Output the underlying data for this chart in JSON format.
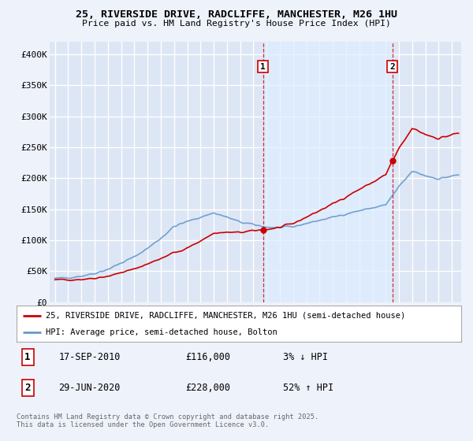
{
  "title": "25, RIVERSIDE DRIVE, RADCLIFFE, MANCHESTER, M26 1HU",
  "subtitle": "Price paid vs. HM Land Registry's House Price Index (HPI)",
  "background_color": "#eef2fb",
  "plot_bg_color": "#dde6f5",
  "plot_bg_highlight": "#ddeeff",
  "grid_color": "#ffffff",
  "ylim": [
    0,
    420000
  ],
  "yticks": [
    0,
    50000,
    100000,
    150000,
    200000,
    250000,
    300000,
    350000,
    400000
  ],
  "ytick_labels": [
    "£0",
    "£50K",
    "£100K",
    "£150K",
    "£200K",
    "£250K",
    "£300K",
    "£350K",
    "£400K"
  ],
  "legend_line1": "25, RIVERSIDE DRIVE, RADCLIFFE, MANCHESTER, M26 1HU (semi-detached house)",
  "legend_line2": "HPI: Average price, semi-detached house, Bolton",
  "legend_color1": "#cc0000",
  "legend_color2": "#6699cc",
  "annotation1_label": "1",
  "annotation1_date": "17-SEP-2010",
  "annotation1_price": "£116,000",
  "annotation1_hpi": "3% ↓ HPI",
  "annotation2_label": "2",
  "annotation2_date": "29-JUN-2020",
  "annotation2_price": "£228,000",
  "annotation2_hpi": "52% ↑ HPI",
  "footer": "Contains HM Land Registry data © Crown copyright and database right 2025.\nThis data is licensed under the Open Government Licence v3.0.",
  "vline1_x": 2010.72,
  "vline2_x": 2020.49,
  "marker1_price": 116000,
  "marker2_price": 228000,
  "hpi_line_color": "#6699cc",
  "price_line_color": "#cc0000",
  "xlim": [
    1994.6,
    2025.7
  ],
  "xticks": [
    1995,
    1996,
    1997,
    1998,
    1999,
    2000,
    2001,
    2002,
    2003,
    2004,
    2005,
    2006,
    2007,
    2008,
    2009,
    2010,
    2011,
    2012,
    2013,
    2014,
    2015,
    2016,
    2017,
    2018,
    2019,
    2020,
    2021,
    2022,
    2023,
    2024,
    2025
  ]
}
